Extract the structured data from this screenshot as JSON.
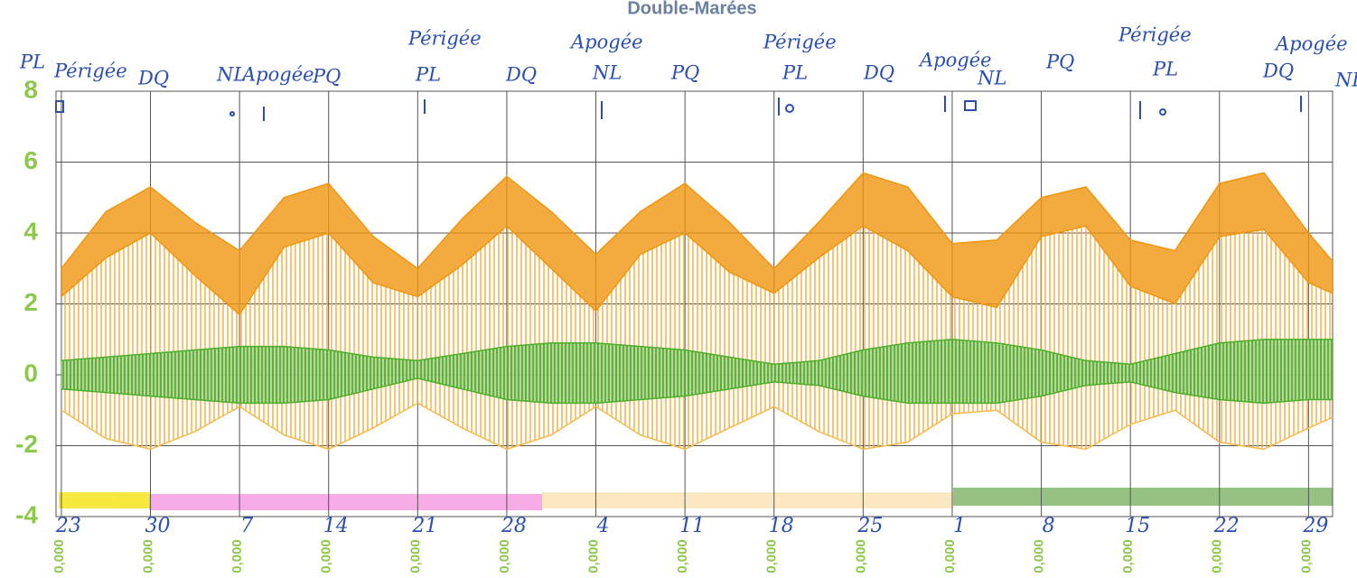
{
  "chart_data": {
    "type": "line",
    "title": "Double-Marées",
    "xlim": [
      -0.06,
      14.27
    ],
    "xticks": [
      {
        "value": 0,
        "label": "23"
      },
      {
        "value": 1,
        "label": "30"
      },
      {
        "value": 2,
        "label": "7"
      },
      {
        "value": 3,
        "label": "14"
      },
      {
        "value": 4,
        "label": "21"
      },
      {
        "value": 5,
        "label": "28"
      },
      {
        "value": 6,
        "label": "4"
      },
      {
        "value": 7,
        "label": "11"
      },
      {
        "value": 8,
        "label": "18"
      },
      {
        "value": 9,
        "label": "25"
      },
      {
        "value": 10,
        "label": "1"
      },
      {
        "value": 11,
        "label": "8"
      },
      {
        "value": 12,
        "label": "15"
      },
      {
        "value": 13,
        "label": "22"
      },
      {
        "value": 14,
        "label": "29"
      }
    ],
    "x_sub_labels": [
      "0,000",
      "0,000",
      "0,000",
      "0,000",
      "0,000",
      "0,000",
      "0,000",
      "0,000",
      "0,000",
      "0,000",
      "0,000",
      "0,000",
      "0,000",
      "0,000",
      "0,000"
    ],
    "ylim": [
      -4,
      8
    ],
    "yticks": [
      8,
      6,
      4,
      2,
      0,
      -2,
      -4
    ],
    "grid": true,
    "x": [
      0,
      0.5,
      1,
      1.5,
      2,
      2.5,
      3,
      3.5,
      4,
      4.5,
      5,
      5.5,
      6,
      6.5,
      7,
      7.5,
      8,
      8.5,
      9,
      9.5,
      10,
      10.5,
      11,
      11.5,
      12,
      12.5,
      13,
      13.5,
      14,
      14.27
    ],
    "series": [
      {
        "color": "#f0960f",
        "values": [
          3.0,
          4.6,
          5.3,
          4.3,
          3.5,
          5.0,
          5.4,
          3.9,
          3.0,
          4.4,
          5.6,
          4.6,
          3.4,
          4.6,
          5.4,
          4.3,
          3.0,
          4.3,
          5.7,
          5.3,
          3.7,
          3.8,
          5.0,
          5.3,
          3.8,
          3.5,
          5.4,
          5.7,
          4.0,
          3.2
        ]
      },
      {
        "color": "#f0960f",
        "values": [
          2.2,
          3.3,
          4.0,
          2.8,
          1.7,
          3.6,
          4.0,
          2.6,
          2.2,
          3.1,
          4.2,
          3.0,
          1.8,
          3.4,
          4.0,
          2.9,
          2.3,
          3.3,
          4.2,
          3.5,
          2.2,
          1.9,
          3.9,
          4.2,
          2.5,
          2.0,
          3.9,
          4.1,
          2.6,
          2.3
        ]
      },
      {
        "color": "#f5b94a",
        "values": [
          -1.0,
          -1.8,
          -2.1,
          -1.6,
          -0.9,
          -1.7,
          -2.1,
          -1.5,
          -0.8,
          -1.5,
          -2.1,
          -1.7,
          -0.9,
          -1.7,
          -2.1,
          -1.5,
          -0.9,
          -1.6,
          -2.1,
          -1.9,
          -1.1,
          -1.0,
          -1.9,
          -2.1,
          -1.4,
          -1.0,
          -1.9,
          -2.1,
          -1.5,
          -1.2
        ]
      },
      {
        "color": "#4caf2a",
        "values": [
          0.4,
          0.5,
          0.6,
          0.7,
          0.8,
          0.8,
          0.7,
          0.5,
          0.4,
          0.6,
          0.8,
          0.9,
          0.9,
          0.8,
          0.7,
          0.5,
          0.3,
          0.4,
          0.7,
          0.9,
          1.0,
          0.9,
          0.7,
          0.4,
          0.3,
          0.6,
          0.9,
          1.0,
          1.0,
          1.0
        ]
      },
      {
        "color": "#4caf2a",
        "values": [
          -0.4,
          -0.5,
          -0.6,
          -0.7,
          -0.8,
          -0.8,
          -0.7,
          -0.4,
          -0.1,
          -0.4,
          -0.7,
          -0.8,
          -0.8,
          -0.7,
          -0.6,
          -0.4,
          -0.2,
          -0.3,
          -0.6,
          -0.8,
          -0.8,
          -0.8,
          -0.6,
          -0.3,
          -0.2,
          -0.5,
          -0.7,
          -0.8,
          -0.7,
          -0.7
        ]
      }
    ],
    "annotations": [
      "PL",
      "Périgée",
      "DQ",
      "NL",
      "Apogée",
      "PQ",
      "Périgée",
      "PL",
      "DQ",
      "Apogée",
      "NL",
      "PQ",
      "Périgée",
      "PL",
      "DQ",
      "Apogée",
      "NL",
      "PQ",
      "Périgée",
      "PL",
      "DQ",
      "Apogée",
      "NL"
    ]
  }
}
